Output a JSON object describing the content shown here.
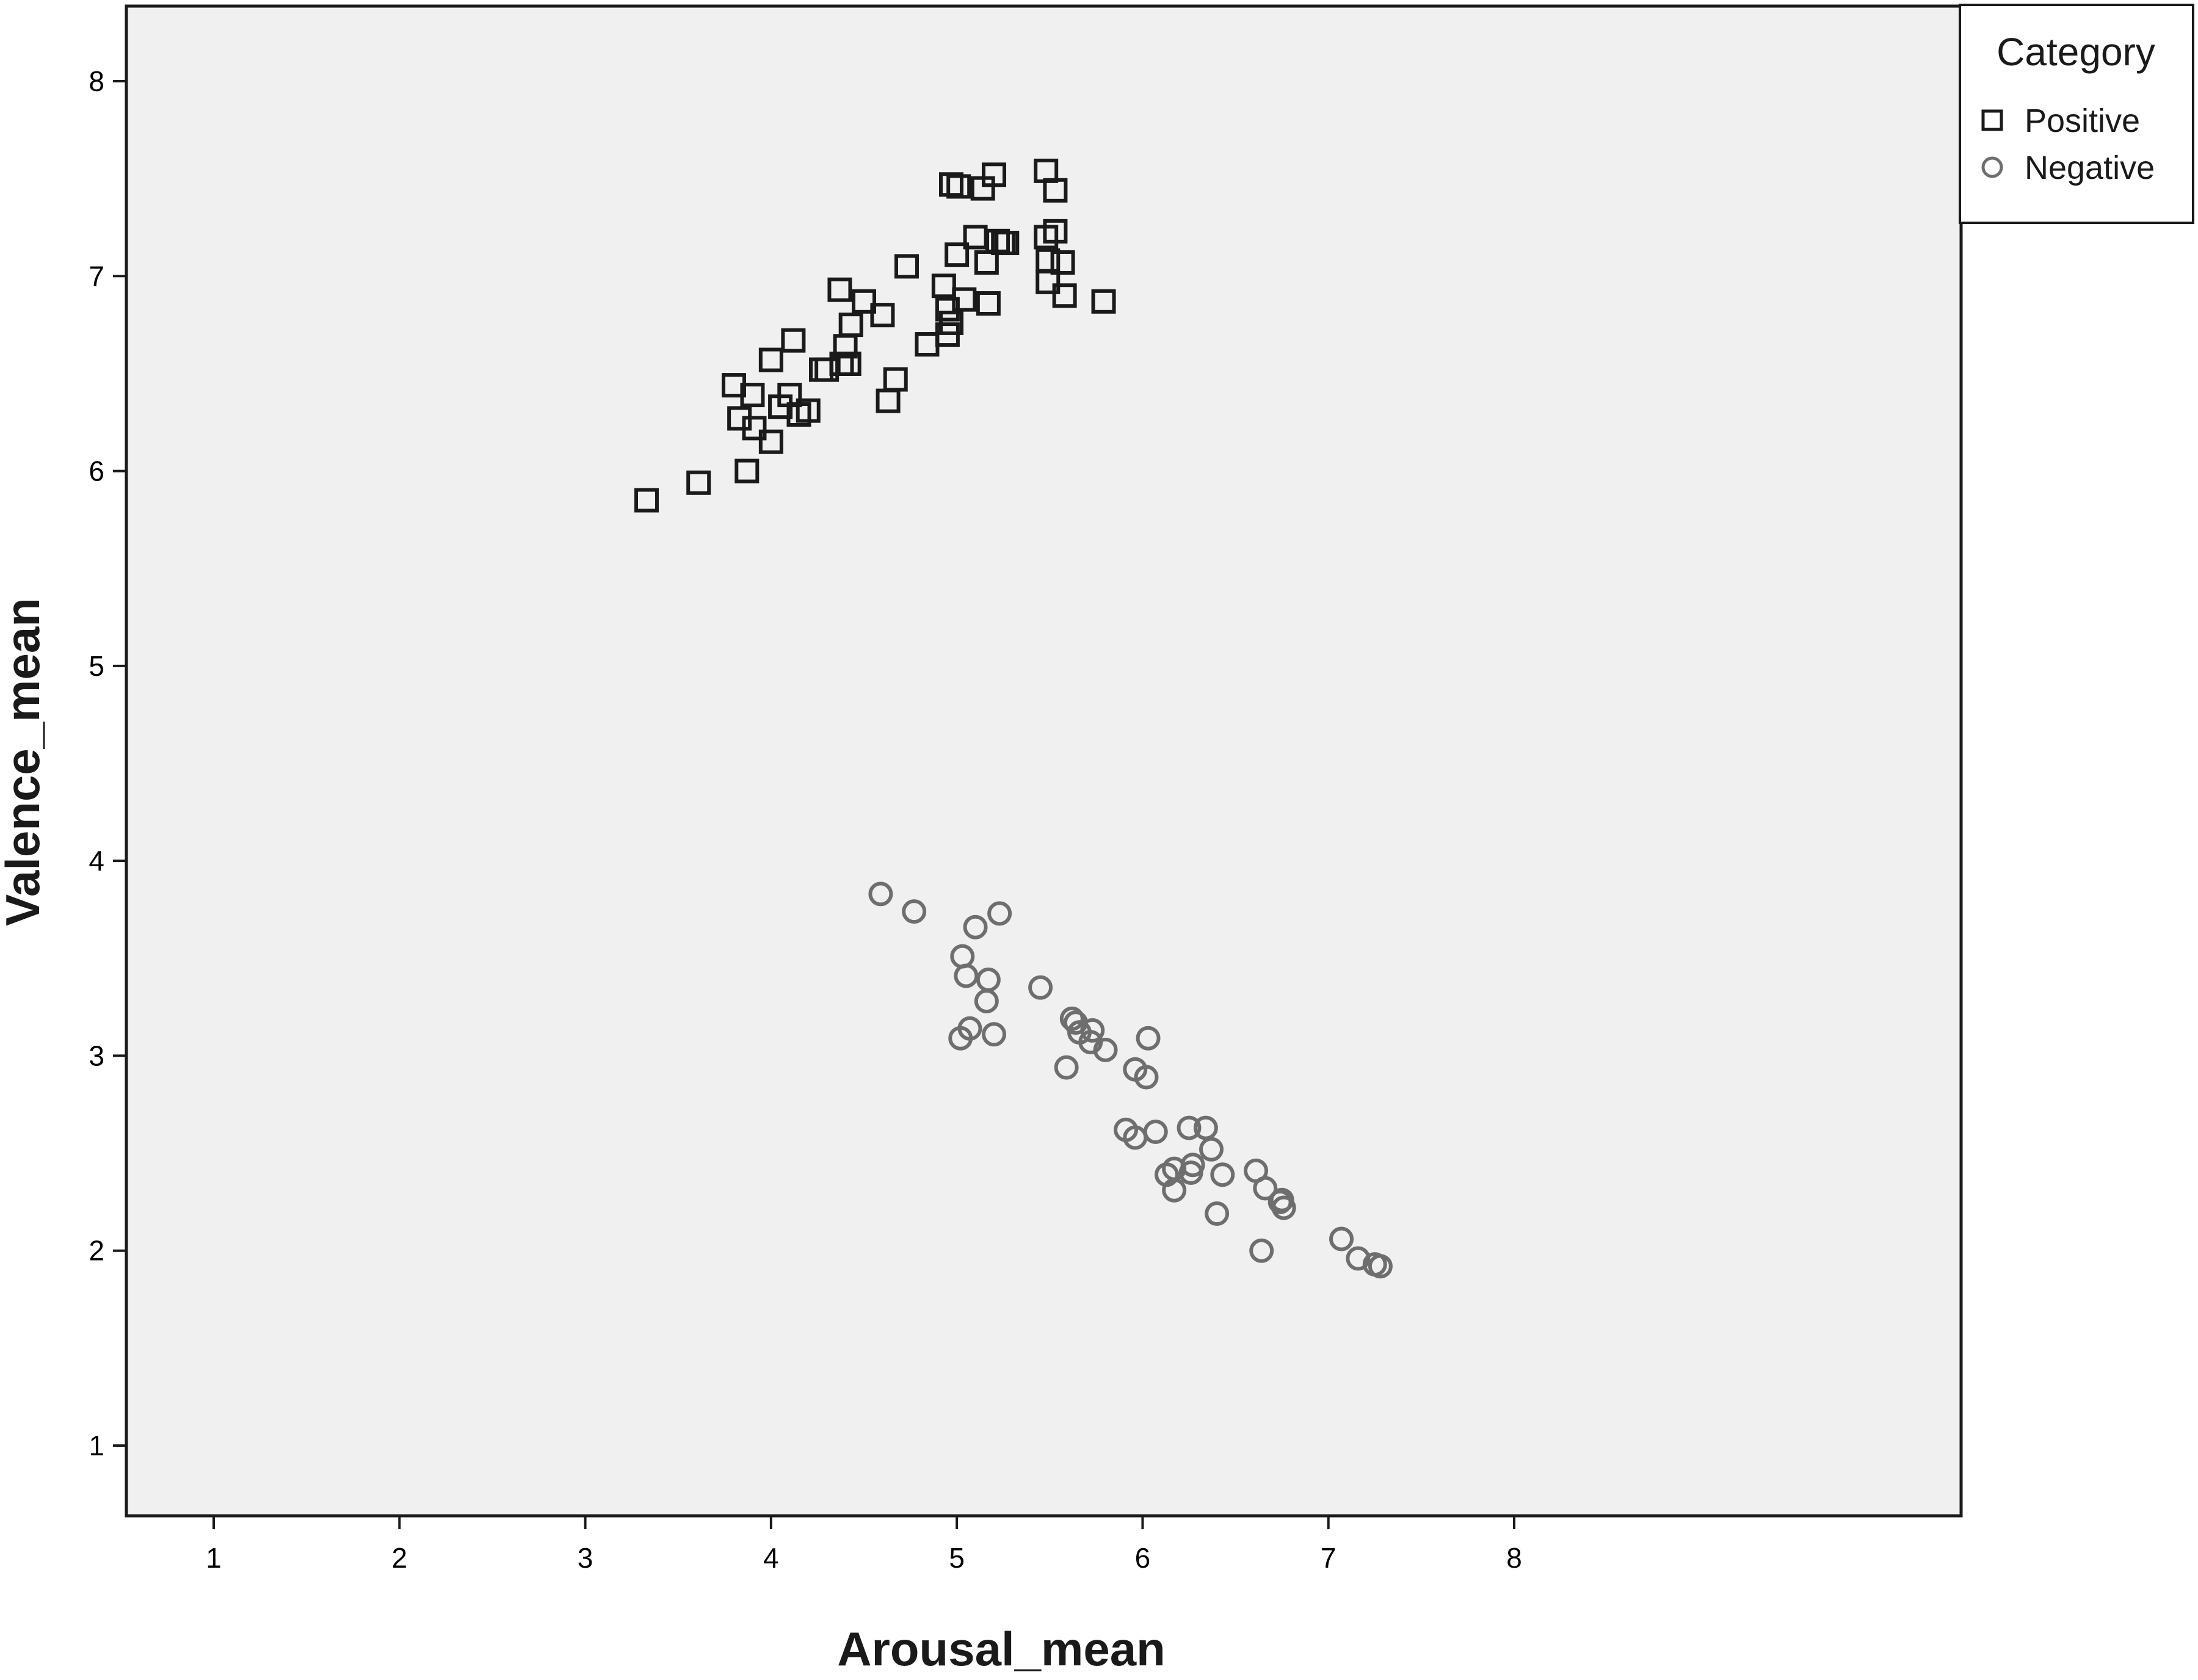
{
  "chart_data": {
    "type": "scatter",
    "title": "",
    "xlabel": "Arousal_mean",
    "ylabel": "Valence_mean",
    "xlim": [
      0.6,
      8.4
    ],
    "ylim": [
      0.6,
      8.4
    ],
    "xticks": [
      1,
      2,
      3,
      4,
      5,
      6,
      7,
      8
    ],
    "yticks": [
      1,
      2,
      3,
      4,
      5,
      6,
      7,
      8
    ],
    "grid": false,
    "legend_position": "top-right, outside plot",
    "legend_title": "Category",
    "colors": {
      "plot_background": "#f0f0f0",
      "positive_marker": "#1a1a1a",
      "negative_marker": "#6e6e6e"
    },
    "series": [
      {
        "name": "Positive",
        "marker": "square",
        "points": [
          [
            3.33,
            5.85
          ],
          [
            3.61,
            5.94
          ],
          [
            3.87,
            6.0
          ],
          [
            3.8,
            6.44
          ],
          [
            3.83,
            6.27
          ],
          [
            3.9,
            6.39
          ],
          [
            3.91,
            6.22
          ],
          [
            4.0,
            6.15
          ],
          [
            4.0,
            6.57
          ],
          [
            4.05,
            6.33
          ],
          [
            4.1,
            6.39
          ],
          [
            4.12,
            6.67
          ],
          [
            4.15,
            6.29
          ],
          [
            4.2,
            6.31
          ],
          [
            4.27,
            6.52
          ],
          [
            4.3,
            6.52
          ],
          [
            4.37,
            6.93
          ],
          [
            4.38,
            6.55
          ],
          [
            4.4,
            6.64
          ],
          [
            4.42,
            6.55
          ],
          [
            4.43,
            6.75
          ],
          [
            4.5,
            6.87
          ],
          [
            4.6,
            6.8
          ],
          [
            4.63,
            6.36
          ],
          [
            4.67,
            6.47
          ],
          [
            4.73,
            7.05
          ],
          [
            4.84,
            6.65
          ],
          [
            4.93,
            6.95
          ],
          [
            4.95,
            6.83
          ],
          [
            4.95,
            6.7
          ],
          [
            4.97,
            6.76
          ],
          [
            4.97,
            7.47
          ],
          [
            5.01,
            7.46
          ],
          [
            5.0,
            7.11
          ],
          [
            5.04,
            6.88
          ],
          [
            5.1,
            7.2
          ],
          [
            5.14,
            7.45
          ],
          [
            5.16,
            7.07
          ],
          [
            5.17,
            6.86
          ],
          [
            5.2,
            7.52
          ],
          [
            5.22,
            7.18
          ],
          [
            5.25,
            7.17
          ],
          [
            5.27,
            7.17
          ],
          [
            5.48,
            7.54
          ],
          [
            5.48,
            7.2
          ],
          [
            5.49,
            7.08
          ],
          [
            5.49,
            6.97
          ],
          [
            5.53,
            7.44
          ],
          [
            5.53,
            7.23
          ],
          [
            5.57,
            7.07
          ],
          [
            5.58,
            6.9
          ],
          [
            5.79,
            6.87
          ]
        ]
      },
      {
        "name": "Negative",
        "marker": "circle",
        "points": [
          [
            4.59,
            3.83
          ],
          [
            4.77,
            3.74
          ],
          [
            5.03,
            3.51
          ],
          [
            5.05,
            3.41
          ],
          [
            5.02,
            3.09
          ],
          [
            5.07,
            3.14
          ],
          [
            5.1,
            3.66
          ],
          [
            5.16,
            3.28
          ],
          [
            5.17,
            3.39
          ],
          [
            5.2,
            3.11
          ],
          [
            5.23,
            3.73
          ],
          [
            5.45,
            3.35
          ],
          [
            5.59,
            2.94
          ],
          [
            5.62,
            3.19
          ],
          [
            5.64,
            3.17
          ],
          [
            5.66,
            3.12
          ],
          [
            5.72,
            3.07
          ],
          [
            5.73,
            3.13
          ],
          [
            5.8,
            3.03
          ],
          [
            5.96,
            2.93
          ],
          [
            6.02,
            2.89
          ],
          [
            6.03,
            3.09
          ],
          [
            5.91,
            2.62
          ],
          [
            5.96,
            2.58
          ],
          [
            6.07,
            2.61
          ],
          [
            6.13,
            2.39
          ],
          [
            6.17,
            2.31
          ],
          [
            6.17,
            2.42
          ],
          [
            6.25,
            2.63
          ],
          [
            6.26,
            2.4
          ],
          [
            6.27,
            2.44
          ],
          [
            6.34,
            2.63
          ],
          [
            6.37,
            2.52
          ],
          [
            6.4,
            2.19
          ],
          [
            6.43,
            2.39
          ],
          [
            6.61,
            2.41
          ],
          [
            6.64,
            2.0
          ],
          [
            6.66,
            2.32
          ],
          [
            6.74,
            2.25
          ],
          [
            6.75,
            2.26
          ],
          [
            6.76,
            2.22
          ],
          [
            7.07,
            2.06
          ],
          [
            7.16,
            1.96
          ],
          [
            7.25,
            1.93
          ],
          [
            7.28,
            1.92
          ]
        ]
      }
    ]
  }
}
